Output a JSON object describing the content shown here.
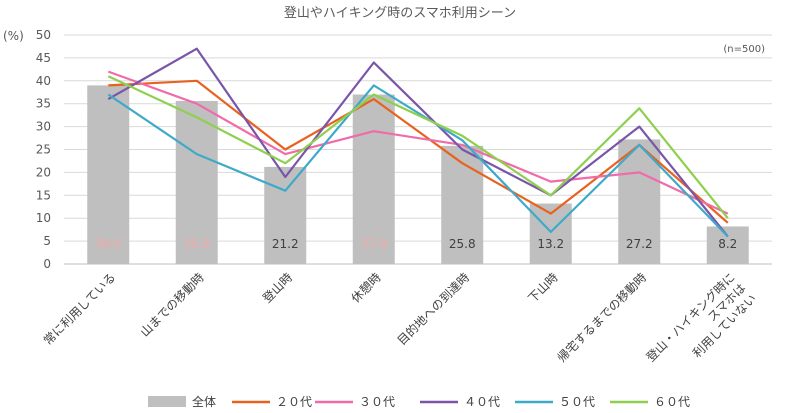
{
  "chart_data": {
    "type": "bar",
    "title": "登山やハイキング時のスマホ利用シーン",
    "y_unit": "(%)",
    "note": "(n=500)",
    "ylim": [
      0,
      50
    ],
    "yticks": [
      0,
      5,
      10,
      15,
      20,
      25,
      30,
      35,
      40,
      45,
      50
    ],
    "grid": true,
    "legend_position": "bottom",
    "categories": [
      [
        "常に利用している"
      ],
      [
        "山までの移動時"
      ],
      [
        "登山時"
      ],
      [
        "休憩時"
      ],
      [
        "目的地への到達時"
      ],
      [
        "下山時"
      ],
      [
        "帰宅するまでの移動時"
      ],
      [
        "登山・ハイキング時に",
        "スマホは",
        "利用していない"
      ]
    ],
    "bar_series": {
      "name": "全体",
      "color": "#bfbfbf",
      "values": [
        39.0,
        35.6,
        21.2,
        37.0,
        25.8,
        13.2,
        27.2,
        8.2
      ],
      "labels": [
        "39.0",
        "35.6",
        "21.2",
        "37.0",
        "25.8",
        "13.2",
        "27.2",
        "8.2"
      ],
      "label_colors": [
        "#f4a7a7",
        "#f4a7a7",
        "#404040",
        "#f4a7a7",
        "#404040",
        "#404040",
        "#404040",
        "#404040"
      ]
    },
    "line_series": [
      {
        "name": "２０代",
        "color": "#e8621f",
        "values": [
          39,
          40,
          25,
          36,
          22,
          11,
          26,
          9
        ]
      },
      {
        "name": "３０代",
        "color": "#f06ba8",
        "values": [
          42,
          35,
          24,
          29,
          26,
          18,
          20,
          11
        ]
      },
      {
        "name": "４０代",
        "color": "#7a55a8",
        "values": [
          36,
          47,
          19,
          44,
          25,
          15,
          30,
          6
        ]
      },
      {
        "name": "５０代",
        "color": "#3fa9c9",
        "values": [
          37,
          24,
          16,
          39,
          27,
          7,
          26,
          6
        ]
      },
      {
        "name": "６０代",
        "color": "#8fcf4f",
        "values": [
          41,
          32,
          22,
          37,
          28,
          15,
          34,
          10
        ]
      }
    ]
  }
}
